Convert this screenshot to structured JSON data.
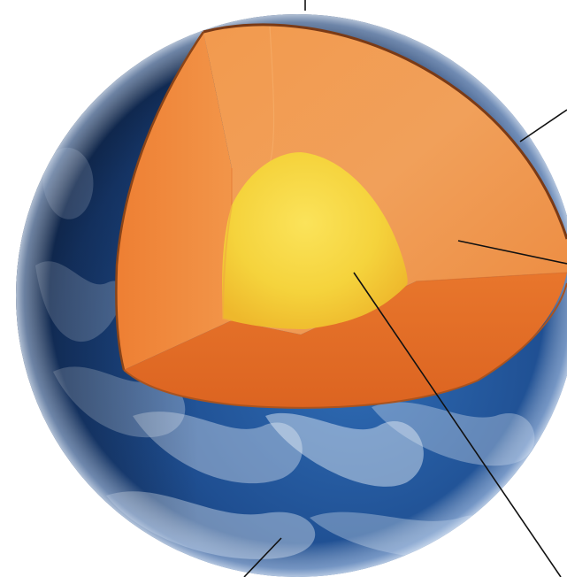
{
  "diagram": {
    "kind": "cutaway sphere",
    "layers": [
      {
        "id": "surface",
        "color": "#2a5fa0"
      },
      {
        "id": "outer-layer",
        "color": "#e9812f"
      },
      {
        "id": "core",
        "color": "#f4d33b"
      }
    ],
    "leader_lines": 5,
    "labels": []
  }
}
